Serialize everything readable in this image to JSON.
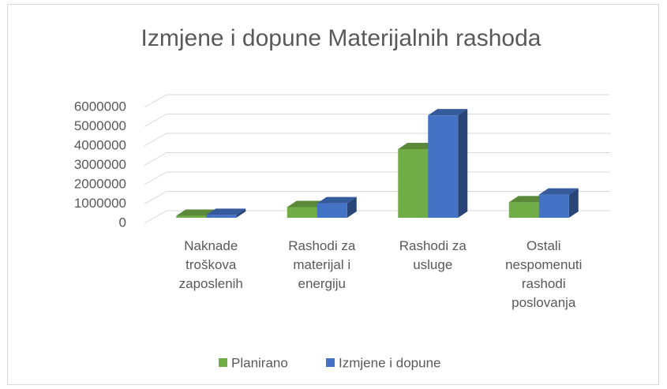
{
  "chart_data": {
    "type": "bar",
    "title": "Izmjene i dopune Materijalnih rashoda",
    "categories": [
      "Naknade troškova zaposlenih",
      "Rashodi za materijal i energiju",
      "Rashodi za usluge",
      "Ostali nespomenuti rashodi poslovanja"
    ],
    "series": [
      {
        "name": "Planirano",
        "color": "#70ad47",
        "values": [
          100000,
          550000,
          3550000,
          800000
        ]
      },
      {
        "name": "Izmjene i dopune",
        "color": "#4472c4",
        "values": [
          150000,
          750000,
          5300000,
          1200000
        ]
      }
    ],
    "ylim": [
      0,
      6000000
    ],
    "yticks": [
      0,
      1000000,
      2000000,
      3000000,
      4000000,
      5000000,
      6000000
    ],
    "grid": true,
    "legend": "bottom"
  }
}
